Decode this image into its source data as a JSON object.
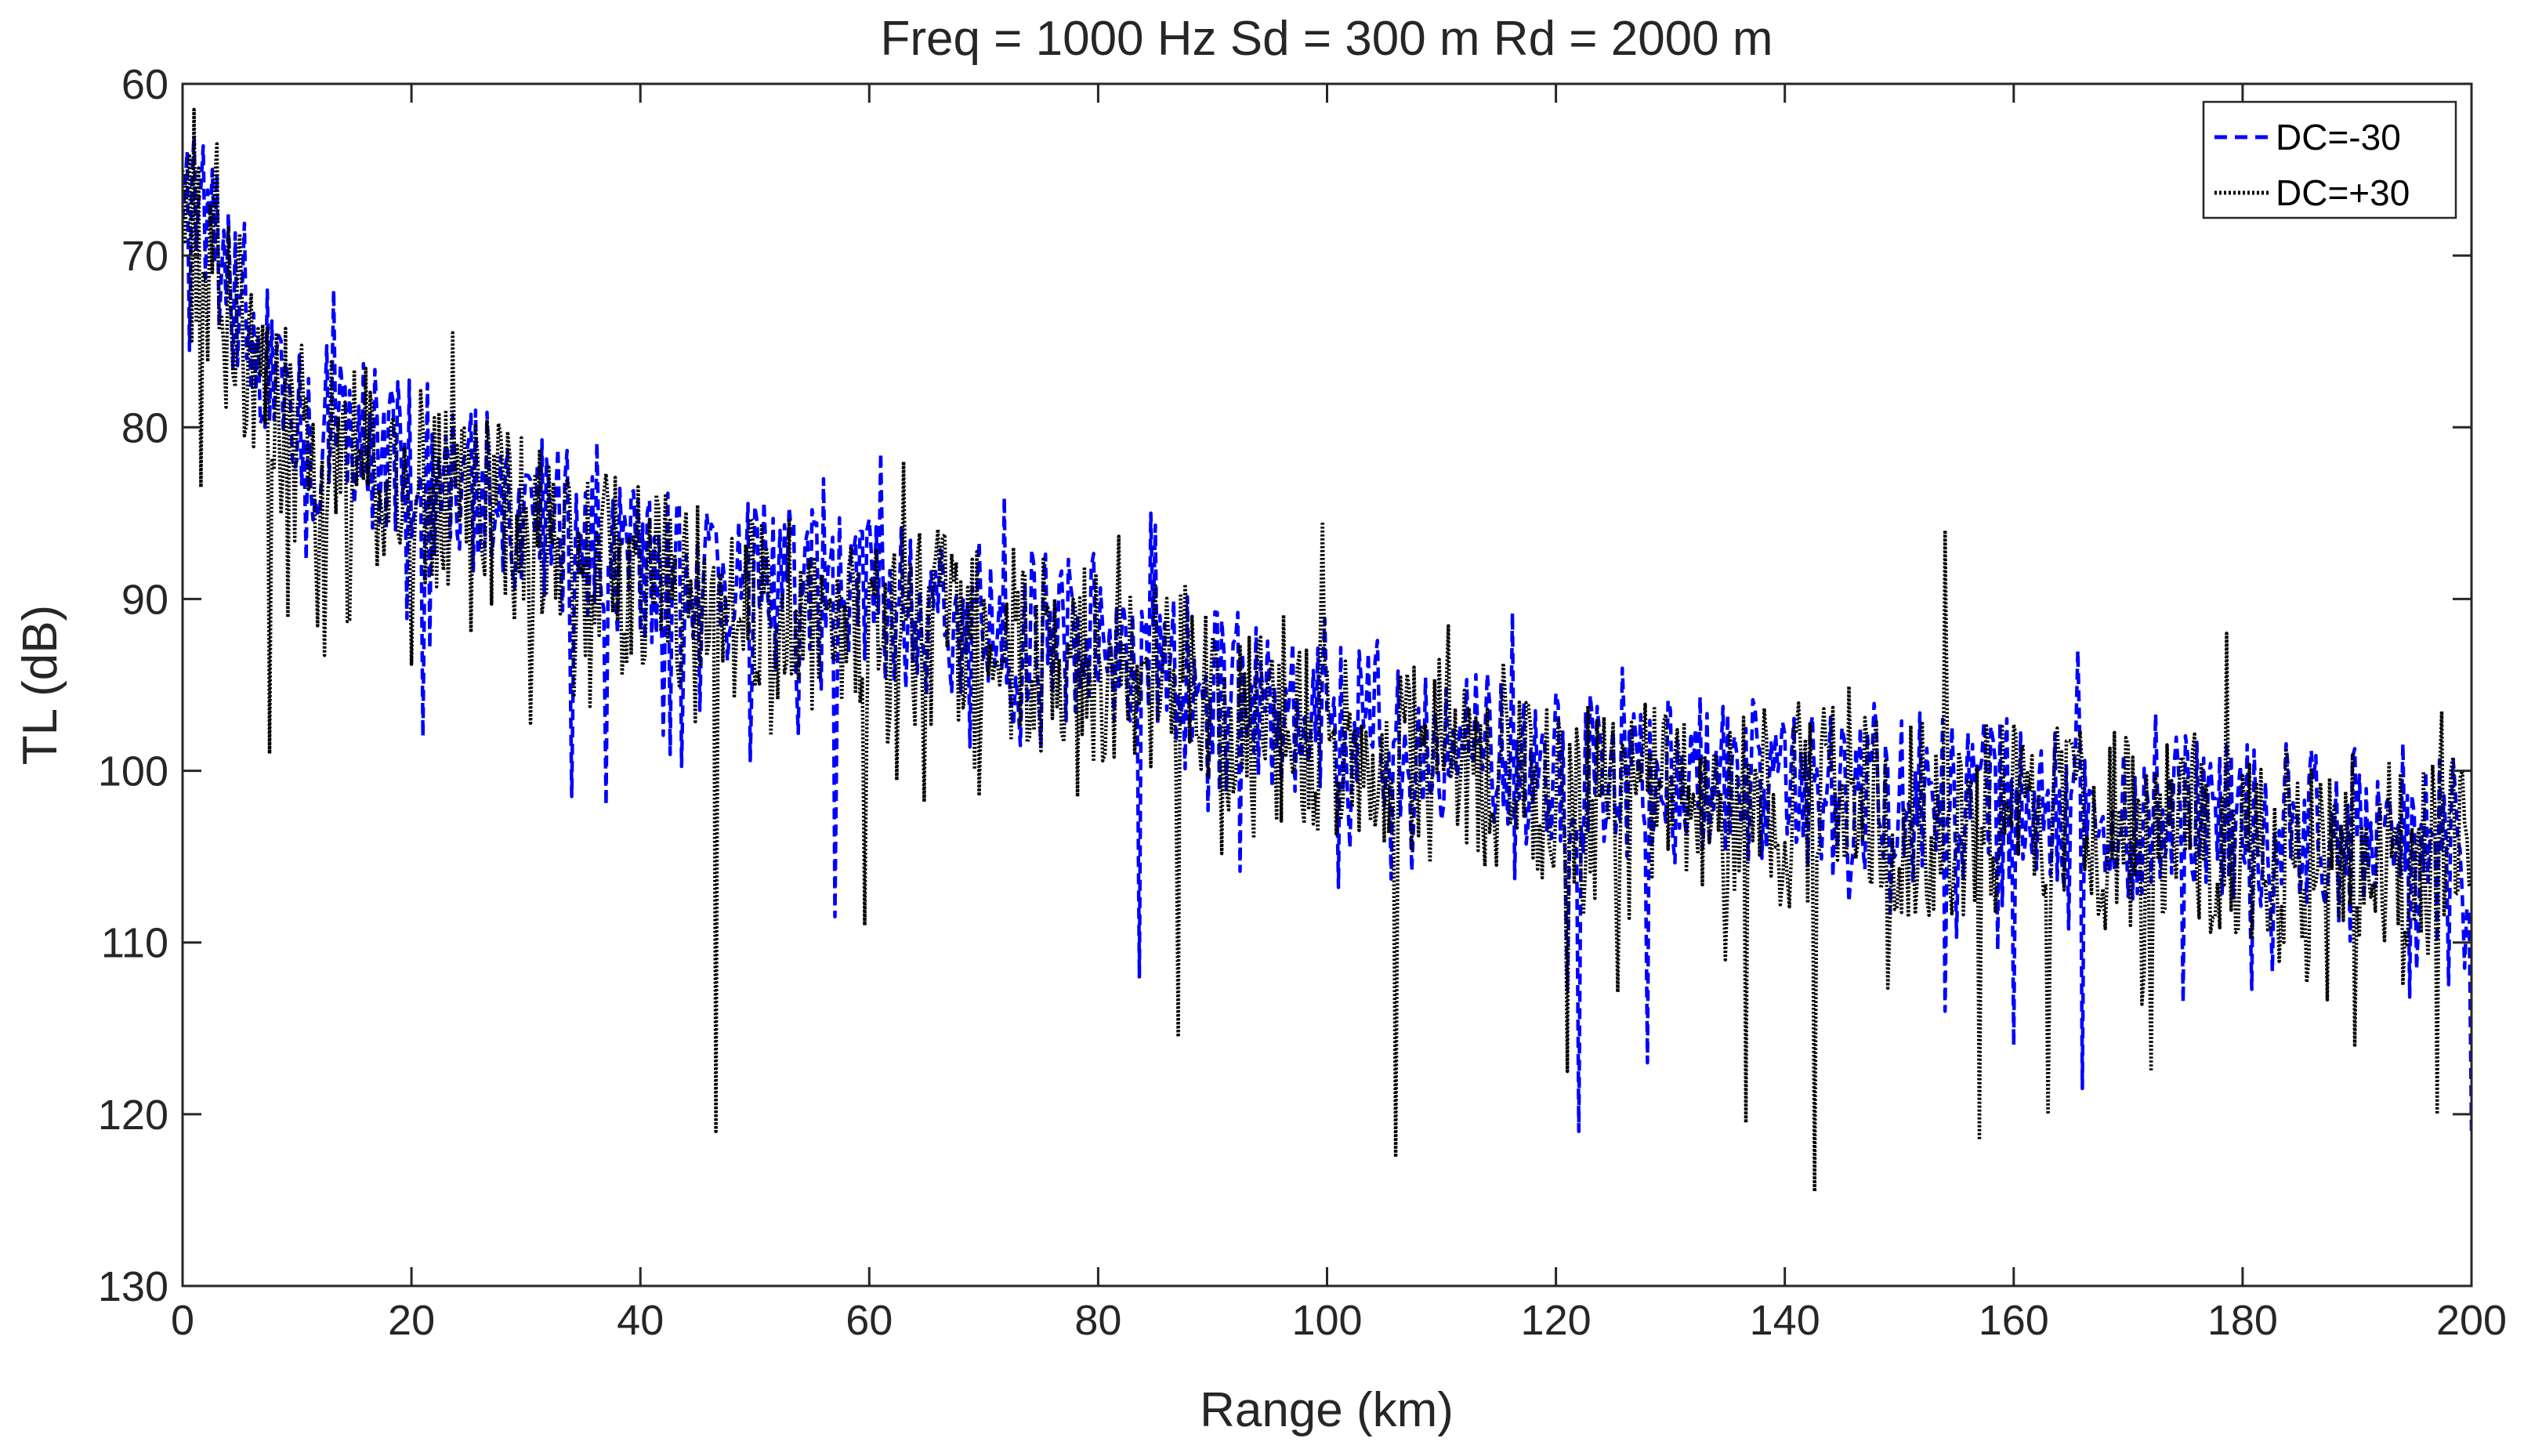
{
  "chart_data": {
    "type": "line",
    "title": "Freq = 1000 Hz    Sd = 300 m   Rd = 2000 m",
    "xlabel": "Range (km)",
    "ylabel": "TL (dB)",
    "xlim": [
      0,
      200
    ],
    "ylim": [
      60,
      130
    ],
    "y_reversed": true,
    "grid": false,
    "legend_position": "top-right",
    "xticks": [
      0,
      20,
      40,
      60,
      80,
      100,
      120,
      140,
      160,
      180,
      200
    ],
    "yticks": [
      60,
      70,
      80,
      90,
      100,
      110,
      120,
      130
    ],
    "xtick_labels": [
      "0",
      "20",
      "40",
      "60",
      "80",
      "100",
      "120",
      "140",
      "160",
      "180",
      "200"
    ],
    "ytick_labels": [
      "60",
      "70",
      "80",
      "90",
      "100",
      "110",
      "120",
      "130"
    ],
    "sample_step_km": 0.2,
    "series": [
      {
        "name": "DC=-30",
        "color": "#0000ff",
        "style": "dashed",
        "trend": [
          [
            0,
            65
          ],
          [
            10,
            80
          ],
          [
            20,
            82
          ],
          [
            40,
            88
          ],
          [
            60,
            90
          ],
          [
            80,
            93
          ],
          [
            100,
            97
          ],
          [
            120,
            100
          ],
          [
            140,
            101
          ],
          [
            160,
            102
          ],
          [
            180,
            103
          ],
          [
            200,
            104
          ]
        ],
        "spread_dB": 5,
        "peaks": [
          [
            1,
            63
          ],
          [
            13.2,
            72
          ],
          [
            56,
            83
          ],
          [
            61,
            81.5
          ],
          [
            84.5,
            85
          ],
          [
            165.5,
            93
          ]
        ],
        "nulls": [
          [
            21,
            98
          ],
          [
            34,
            101.5
          ],
          [
            37,
            102
          ],
          [
            57,
            108.5
          ],
          [
            83.5,
            112
          ],
          [
            122,
            121
          ],
          [
            128,
            117
          ],
          [
            154,
            114
          ],
          [
            160,
            116
          ],
          [
            166,
            118.5
          ],
          [
            200,
            121
          ]
        ],
        "seed": 7
      },
      {
        "name": "DC=+30",
        "color": "#000000",
        "style": "dotted",
        "trend": [
          [
            0,
            68
          ],
          [
            10,
            81
          ],
          [
            20,
            83
          ],
          [
            40,
            89
          ],
          [
            60,
            91
          ],
          [
            80,
            94
          ],
          [
            100,
            98
          ],
          [
            120,
            101
          ],
          [
            140,
            102
          ],
          [
            160,
            103
          ],
          [
            180,
            104
          ],
          [
            200,
            105
          ]
        ],
        "spread_dB": 6,
        "peaks": [
          [
            1,
            61.5
          ],
          [
            3,
            63.5
          ],
          [
            23.5,
            74.5
          ],
          [
            63,
            82
          ],
          [
            99.5,
            85.5
          ],
          [
            154,
            86
          ],
          [
            178.5,
            92
          ]
        ],
        "nulls": [
          [
            7.5,
            99
          ],
          [
            46.5,
            121
          ],
          [
            59.5,
            109
          ],
          [
            87,
            115.5
          ],
          [
            106,
            122.5
          ],
          [
            121,
            117.5
          ],
          [
            136.5,
            120.5
          ],
          [
            142.5,
            124.5
          ],
          [
            157,
            121.5
          ],
          [
            163,
            120
          ],
          [
            172,
            117.5
          ],
          [
            197,
            120
          ]
        ],
        "seed": 42
      }
    ]
  }
}
